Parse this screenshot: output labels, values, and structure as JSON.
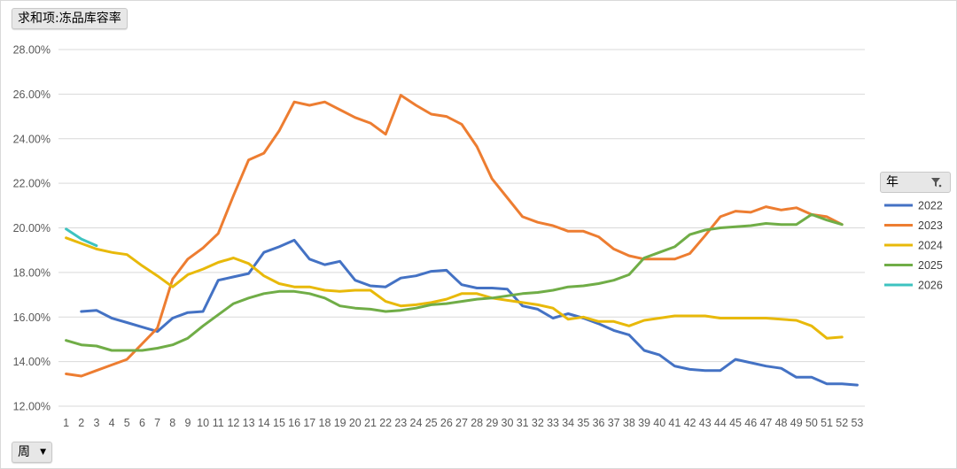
{
  "value_field_button": "求和项:冻品库容率",
  "row_field_button": "周",
  "legend_field_button": "年",
  "icons": {
    "legend_filter": "filter-icon",
    "row_dropdown": "dropdown-arrow-icon"
  },
  "chart_data": {
    "type": "line",
    "title": "",
    "xlabel": "",
    "ylabel": "",
    "categories": [
      1,
      2,
      3,
      4,
      5,
      6,
      7,
      8,
      9,
      10,
      11,
      12,
      13,
      14,
      15,
      16,
      17,
      18,
      19,
      20,
      21,
      22,
      23,
      24,
      25,
      26,
      27,
      28,
      29,
      30,
      31,
      32,
      33,
      34,
      35,
      36,
      37,
      38,
      39,
      40,
      41,
      42,
      43,
      44,
      45,
      46,
      47,
      48,
      49,
      50,
      51,
      52,
      53
    ],
    "ylim": [
      12,
      28
    ],
    "yticks": [
      12,
      14,
      16,
      18,
      20,
      22,
      24,
      26,
      28
    ],
    "ytick_labels": [
      "12.00%",
      "14.00%",
      "16.00%",
      "18.00%",
      "20.00%",
      "22.00%",
      "24.00%",
      "26.00%",
      "28.00%"
    ],
    "grid": true,
    "legend_position": "right",
    "series": [
      {
        "name": "2022",
        "color": "#4472c4",
        "values": [
          null,
          16.25,
          16.3,
          15.95,
          15.75,
          15.55,
          15.35,
          15.95,
          16.2,
          16.25,
          17.65,
          17.8,
          17.95,
          18.9,
          19.15,
          19.45,
          18.6,
          18.35,
          18.5,
          17.65,
          17.4,
          17.35,
          17.75,
          17.85,
          18.05,
          18.1,
          17.45,
          17.3,
          17.3,
          17.25,
          16.5,
          16.35,
          15.95,
          16.15,
          15.95,
          15.7,
          15.4,
          15.2,
          14.5,
          14.3,
          13.8,
          13.65,
          13.6,
          13.6,
          14.1,
          13.95,
          13.8,
          13.7,
          13.3,
          13.3,
          13.0,
          13.0,
          12.95
        ]
      },
      {
        "name": "2023",
        "color": "#ed7d31",
        "values": [
          13.45,
          13.35,
          13.6,
          13.85,
          14.1,
          14.8,
          15.5,
          17.7,
          18.6,
          19.1,
          19.75,
          21.45,
          23.05,
          23.35,
          24.35,
          25.65,
          25.5,
          25.65,
          25.3,
          24.95,
          24.7,
          24.2,
          25.95,
          25.5,
          25.1,
          25.0,
          24.65,
          23.65,
          22.2,
          21.35,
          20.5,
          20.25,
          20.1,
          19.85,
          19.85,
          19.6,
          19.05,
          18.75,
          18.6,
          18.6,
          18.6,
          18.85,
          19.65,
          20.5,
          20.75,
          20.7,
          20.95,
          20.8,
          20.9,
          20.6,
          20.5,
          20.15,
          null
        ]
      },
      {
        "name": "2024",
        "color": "#e8b90a",
        "values": [
          19.55,
          19.3,
          19.05,
          18.9,
          18.8,
          18.3,
          17.85,
          17.35,
          17.9,
          18.15,
          18.45,
          18.65,
          18.4,
          17.85,
          17.5,
          17.35,
          17.35,
          17.2,
          17.15,
          17.2,
          17.2,
          16.7,
          16.5,
          16.55,
          16.65,
          16.8,
          17.05,
          17.05,
          16.85,
          16.75,
          16.65,
          16.55,
          16.4,
          15.9,
          16.0,
          15.8,
          15.8,
          15.6,
          15.85,
          15.95,
          16.05,
          16.05,
          16.05,
          15.95,
          15.95,
          15.95,
          15.95,
          15.9,
          15.85,
          15.6,
          15.05,
          15.1,
          null
        ]
      },
      {
        "name": "2025",
        "color": "#70ad47",
        "values": [
          14.95,
          14.75,
          14.7,
          14.5,
          14.5,
          14.5,
          14.6,
          14.75,
          15.05,
          15.6,
          16.1,
          16.6,
          16.85,
          17.05,
          17.15,
          17.15,
          17.05,
          16.85,
          16.5,
          16.4,
          16.35,
          16.25,
          16.3,
          16.4,
          16.55,
          16.6,
          16.7,
          16.8,
          16.85,
          16.95,
          17.05,
          17.1,
          17.2,
          17.35,
          17.4,
          17.5,
          17.65,
          17.9,
          18.65,
          18.9,
          19.15,
          19.7,
          19.9,
          20.0,
          20.05,
          20.1,
          20.2,
          20.15,
          20.15,
          20.6,
          20.35,
          20.15,
          null
        ]
      },
      {
        "name": "2026",
        "color": "#3dc3c0",
        "values": [
          19.95,
          19.5,
          19.2,
          null,
          null,
          null,
          null,
          null,
          null,
          null,
          null,
          null,
          null,
          null,
          null,
          null,
          null,
          null,
          null,
          null,
          null,
          null,
          null,
          null,
          null,
          null,
          null,
          null,
          null,
          null,
          null,
          null,
          null,
          null,
          null,
          null,
          null,
          null,
          null,
          null,
          null,
          null,
          null,
          null,
          null,
          null,
          null,
          null,
          null,
          null,
          null,
          null,
          null
        ]
      }
    ]
  }
}
